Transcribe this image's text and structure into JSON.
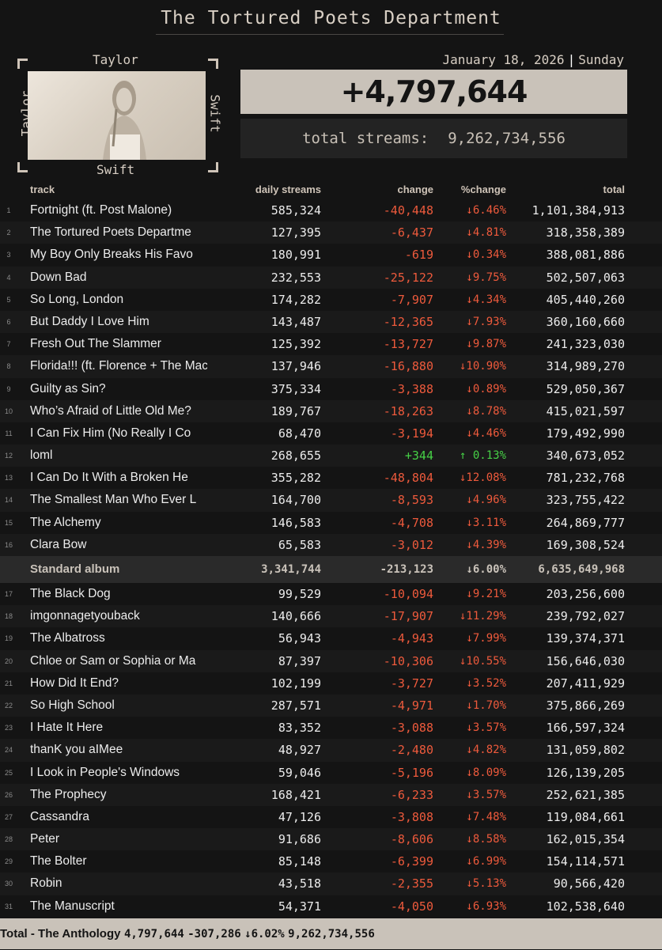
{
  "header": {
    "title": "The Tortured Poets Department"
  },
  "album_art": {
    "top": "Taylor",
    "bottom": "Swift",
    "left": "Taylor",
    "right": "Swift"
  },
  "date": {
    "date": "January 18, 2026",
    "day": "Sunday",
    "separator": "|"
  },
  "summary": {
    "daily_change": "+4,797,644",
    "total_label": "total streams:",
    "total_value": "9,262,734,556"
  },
  "table": {
    "columns": {
      "track": "track",
      "daily": "daily streams",
      "change": "change",
      "pct": "%change",
      "total": "total"
    },
    "standard_rows": [
      {
        "n": "1",
        "name": "Fortnight (ft. Post Malone)",
        "daily": "585,324",
        "change": "-40,448",
        "pct": "↓6.46%",
        "total": "1,101,384,913",
        "dir": "down"
      },
      {
        "n": "2",
        "name": "The Tortured Poets Departme",
        "daily": "127,395",
        "change": "-6,437",
        "pct": "↓4.81%",
        "total": "318,358,389",
        "dir": "down"
      },
      {
        "n": "3",
        "name": "My Boy Only Breaks His Favo",
        "daily": "180,991",
        "change": "-619",
        "pct": "↓0.34%",
        "total": "388,081,886",
        "dir": "down"
      },
      {
        "n": "4",
        "name": "Down Bad",
        "daily": "232,553",
        "change": "-25,122",
        "pct": "↓9.75%",
        "total": "502,507,063",
        "dir": "down"
      },
      {
        "n": "5",
        "name": "So Long, London",
        "daily": "174,282",
        "change": "-7,907",
        "pct": "↓4.34%",
        "total": "405,440,260",
        "dir": "down"
      },
      {
        "n": "6",
        "name": "But Daddy I Love Him",
        "daily": "143,487",
        "change": "-12,365",
        "pct": "↓7.93%",
        "total": "360,160,660",
        "dir": "down"
      },
      {
        "n": "7",
        "name": "Fresh Out The Slammer",
        "daily": "125,392",
        "change": "-13,727",
        "pct": "↓9.87%",
        "total": "241,323,030",
        "dir": "down"
      },
      {
        "n": "8",
        "name": "Florida!!! (ft. Florence + The Machin",
        "daily": "137,946",
        "change": "-16,880",
        "pct": "↓10.90%",
        "total": "314,989,270",
        "dir": "down"
      },
      {
        "n": "9",
        "name": "Guilty as Sin?",
        "daily": "375,334",
        "change": "-3,388",
        "pct": "↓0.89%",
        "total": "529,050,367",
        "dir": "down"
      },
      {
        "n": "10",
        "name": "Who’s Afraid of Little Old Me?",
        "daily": "189,767",
        "change": "-18,263",
        "pct": "↓8.78%",
        "total": "415,021,597",
        "dir": "down"
      },
      {
        "n": "11",
        "name": "I Can Fix Him (No Really I Co",
        "daily": "68,470",
        "change": "-3,194",
        "pct": "↓4.46%",
        "total": "179,492,990",
        "dir": "down"
      },
      {
        "n": "12",
        "name": "loml",
        "daily": "268,655",
        "change": "+344",
        "pct": "↑ 0.13%",
        "total": "340,673,052",
        "dir": "up"
      },
      {
        "n": "13",
        "name": "I Can Do It With a Broken He",
        "daily": "355,282",
        "change": "-48,804",
        "pct": "↓12.08%",
        "total": "781,232,768",
        "dir": "down"
      },
      {
        "n": "14",
        "name": "The Smallest Man Who Ever L",
        "daily": "164,700",
        "change": "-8,593",
        "pct": "↓4.96%",
        "total": "323,755,422",
        "dir": "down"
      },
      {
        "n": "15",
        "name": "The Alchemy",
        "daily": "146,583",
        "change": "-4,708",
        "pct": "↓3.11%",
        "total": "264,869,777",
        "dir": "down"
      },
      {
        "n": "16",
        "name": "Clara Bow",
        "daily": "65,583",
        "change": "-3,012",
        "pct": "↓4.39%",
        "total": "169,308,524",
        "dir": "down"
      }
    ],
    "standard_total": {
      "name": "Standard album",
      "daily": "3,341,744",
      "change": "-213,123",
      "pct": "↓6.00%",
      "total": "6,635,649,968"
    },
    "anthology_rows": [
      {
        "n": "17",
        "name": "The Black Dog",
        "daily": "99,529",
        "change": "-10,094",
        "pct": "↓9.21%",
        "total": "203,256,600",
        "dir": "down"
      },
      {
        "n": "18",
        "name": "imgonnagetyouback",
        "daily": "140,666",
        "change": "-17,907",
        "pct": "↓11.29%",
        "total": "239,792,027",
        "dir": "down"
      },
      {
        "n": "19",
        "name": "The Albatross",
        "daily": "56,943",
        "change": "-4,943",
        "pct": "↓7.99%",
        "total": "139,374,371",
        "dir": "down"
      },
      {
        "n": "20",
        "name": "Chloe or Sam or Sophia or Ma",
        "daily": "87,397",
        "change": "-10,306",
        "pct": "↓10.55%",
        "total": "156,646,030",
        "dir": "down"
      },
      {
        "n": "21",
        "name": "How Did It End?",
        "daily": "102,199",
        "change": "-3,727",
        "pct": "↓3.52%",
        "total": "207,411,929",
        "dir": "down"
      },
      {
        "n": "22",
        "name": "So High School",
        "daily": "287,571",
        "change": "-4,971",
        "pct": "↓1.70%",
        "total": "375,866,269",
        "dir": "down"
      },
      {
        "n": "23",
        "name": "I Hate It Here",
        "daily": "83,352",
        "change": "-3,088",
        "pct": "↓3.57%",
        "total": "166,597,324",
        "dir": "down"
      },
      {
        "n": "24",
        "name": "thanK you aIMee",
        "daily": "48,927",
        "change": "-2,480",
        "pct": "↓4.82%",
        "total": "131,059,802",
        "dir": "down"
      },
      {
        "n": "25",
        "name": "I Look in People's Windows",
        "daily": "59,046",
        "change": "-5,196",
        "pct": "↓8.09%",
        "total": "126,139,205",
        "dir": "down"
      },
      {
        "n": "26",
        "name": "The Prophecy",
        "daily": "168,421",
        "change": "-6,233",
        "pct": "↓3.57%",
        "total": "252,621,385",
        "dir": "down"
      },
      {
        "n": "27",
        "name": "Cassandra",
        "daily": "47,126",
        "change": "-3,808",
        "pct": "↓7.48%",
        "total": "119,084,661",
        "dir": "down"
      },
      {
        "n": "28",
        "name": "Peter",
        "daily": "91,686",
        "change": "-8,606",
        "pct": "↓8.58%",
        "total": "162,015,354",
        "dir": "down"
      },
      {
        "n": "29",
        "name": "The Bolter",
        "daily": "85,148",
        "change": "-6,399",
        "pct": "↓6.99%",
        "total": "154,114,571",
        "dir": "down"
      },
      {
        "n": "30",
        "name": "Robin",
        "daily": "43,518",
        "change": "-2,355",
        "pct": "↓5.13%",
        "total": "90,566,420",
        "dir": "down"
      },
      {
        "n": "31",
        "name": "The Manuscript",
        "daily": "54,371",
        "change": "-4,050",
        "pct": "↓6.93%",
        "total": "102,538,640",
        "dir": "down"
      }
    ],
    "grand_total": {
      "name": "Total - The Anthology",
      "daily": "4,797,644",
      "change": "-307,286",
      "pct": "↓6.02%",
      "total": "9,262,734,556"
    }
  },
  "colors": {
    "negative": "#ee5a3c",
    "positive": "#46d046",
    "accent": "#c9c2b9",
    "background": "#141414"
  }
}
